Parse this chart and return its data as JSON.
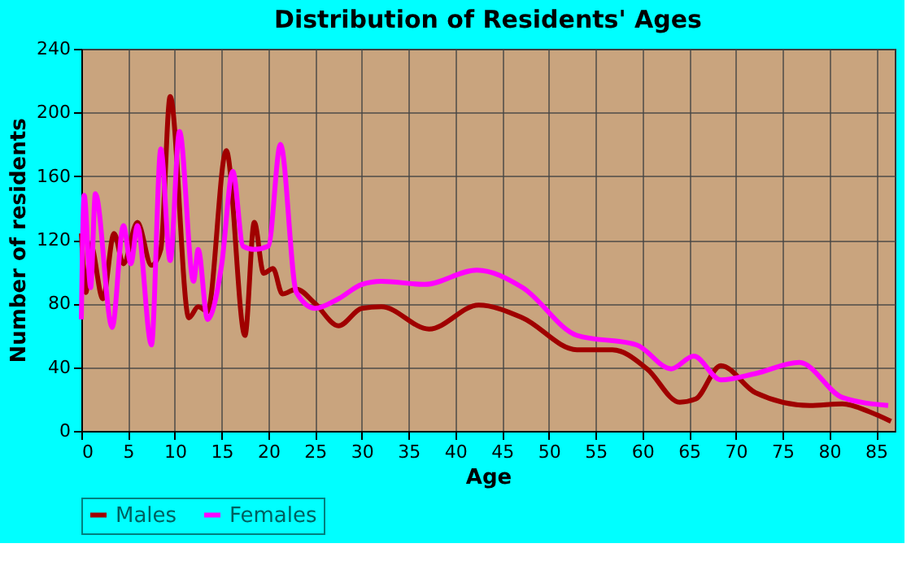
{
  "chart_data": {
    "type": "line",
    "title": "Distribution of Residents' Ages",
    "xlabel": "Age",
    "ylabel": "Number of residents",
    "xlim": [
      0,
      87
    ],
    "xticks": [
      0,
      5,
      10,
      15,
      20,
      25,
      30,
      35,
      40,
      45,
      50,
      55,
      60,
      65,
      70,
      75,
      80,
      85
    ],
    "ylim": [
      0,
      240
    ],
    "yticks": [
      0,
      40,
      80,
      120,
      160,
      200,
      240
    ],
    "grid": true,
    "legend": "bottom",
    "line_style": "solid",
    "marker": "none",
    "series": [
      {
        "name": "Males",
        "color": "#a00000",
        "x": [
          0,
          0.5,
          1,
          2.3,
          3.5,
          4.5,
          6,
          7.5,
          8.5,
          9.5,
          11.5,
          12.5,
          13.5,
          15.5,
          17.5,
          18.5,
          19.5,
          20.5,
          21.5,
          23,
          25,
          27.5,
          30,
          32.1,
          37.2,
          42.5,
          47.2,
          53,
          56.8,
          60.5,
          64,
          65.7,
          68.4,
          72.1,
          77.9,
          81.4,
          84.3,
          86.6
        ],
        "values": [
          124,
          87,
          117,
          83,
          124,
          105,
          131,
          104,
          114,
          210,
          71,
          78,
          75,
          176,
          60,
          131,
          99,
          102,
          86,
          89,
          80,
          66,
          77,
          78,
          64,
          79,
          71,
          51,
          51,
          39,
          18,
          20,
          41,
          24,
          16,
          17,
          12,
          6
        ]
      },
      {
        "name": "Females",
        "color": "#ff00ff",
        "x": [
          0,
          0.3,
          1,
          1.5,
          3.3,
          4.5,
          5.3,
          6,
          7.5,
          8.5,
          9.5,
          10.5,
          12,
          12.5,
          13.5,
          15,
          16.2,
          17.3,
          18.5,
          20,
          21.3,
          23,
          25,
          27.5,
          30,
          32.1,
          36.7,
          42.3,
          47.2,
          53,
          59.4,
          63.1,
          65.5,
          68.4,
          72.1,
          76.8,
          81.4,
          86.3
        ],
        "values": [
          70,
          148,
          90,
          149,
          65,
          129,
          105,
          129,
          54,
          177,
          107,
          188,
          94,
          114,
          70,
          104,
          163,
          116,
          114,
          116,
          180,
          87,
          77,
          83,
          92,
          94,
          92,
          101,
          90,
          60,
          54,
          39,
          47,
          32,
          36,
          43,
          21,
          16
        ]
      }
    ]
  }
}
